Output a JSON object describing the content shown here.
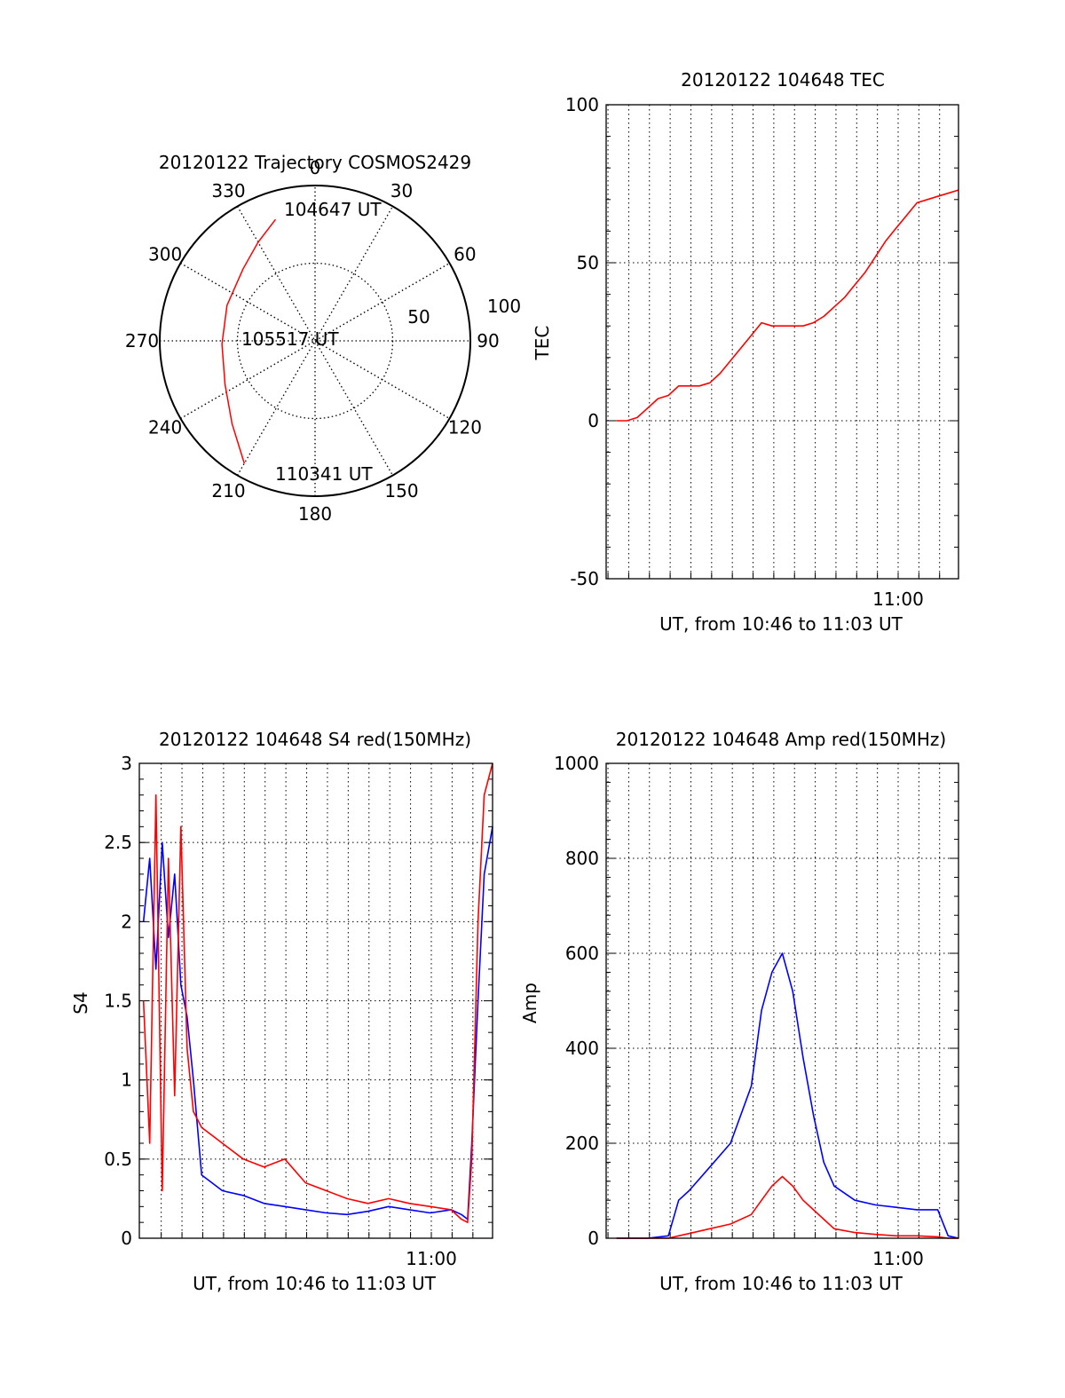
{
  "chart_data": [
    {
      "type": "polar",
      "title": "20120122 Trajectory COSMOS2429",
      "angle_labels": [
        "0",
        "30",
        "60",
        "90",
        "120",
        "150",
        "180",
        "210",
        "240",
        "270",
        "300",
        "330"
      ],
      "radius_labels": [
        "50",
        "100"
      ],
      "series": [
        {
          "color": "#ff0000",
          "points": [
            {
              "azimuth": 342,
              "elevation": 16
            },
            {
              "azimuth": 330,
              "elevation": 24
            },
            {
              "azimuth": 315,
              "elevation": 31
            },
            {
              "azimuth": 292,
              "elevation": 35
            },
            {
              "azimuth": 268,
              "elevation": 36
            },
            {
              "azimuth": 244,
              "elevation": 32
            },
            {
              "azimuth": 225,
              "elevation": 22
            },
            {
              "azimuth": 210,
              "elevation": 8
            }
          ]
        }
      ],
      "annotations": [
        "104647 UT",
        "105517 UT",
        "110341 UT"
      ]
    },
    {
      "type": "line",
      "title": "20120122 104648 TEC",
      "xlabel": "UT, from 10:46 to 11:03 UT",
      "ylabel": "TEC",
      "xlim": [
        0,
        17
      ],
      "ylim": [
        -50,
        100
      ],
      "yticks": [
        "-50",
        "0",
        "50",
        "100"
      ],
      "xtick_label": "11:00",
      "grid": true,
      "series": [
        {
          "color": "#ff0000",
          "x": [
            0.5,
            1.0,
            1.5,
            2.0,
            2.5,
            3.0,
            3.5,
            4.0,
            4.5,
            5.0,
            5.5,
            6.0,
            6.5,
            7.0,
            7.5,
            8.0,
            8.5,
            9.0,
            9.5,
            10.0,
            10.5,
            11.0,
            11.5,
            12.0,
            12.5,
            13.0,
            13.5,
            14.0,
            14.5,
            15.0,
            15.5,
            16.0,
            16.5,
            17.0
          ],
          "y": [
            0,
            0,
            1,
            4,
            7,
            8,
            11,
            11,
            11,
            12,
            15,
            19,
            23,
            27,
            31,
            30,
            30,
            30,
            30,
            31,
            33,
            36,
            39,
            43,
            47,
            52,
            57,
            61,
            65,
            69,
            70,
            71,
            72,
            73
          ]
        }
      ]
    },
    {
      "type": "line",
      "title": "20120122 104648 S4 red(150MHz)",
      "xlabel": "UT, from 10:46 to 11:03 UT",
      "ylabel": "S4",
      "xlim": [
        0,
        17
      ],
      "ylim": [
        0,
        3
      ],
      "yticks": [
        "0",
        "0.5",
        "1",
        "1.5",
        "2",
        "2.5",
        "3"
      ],
      "xtick_label": "11:00",
      "grid": true,
      "series": [
        {
          "color": "#0000ff",
          "x": [
            0.2,
            0.5,
            0.8,
            1.1,
            1.4,
            1.7,
            2.0,
            2.3,
            2.6,
            3.0,
            4.0,
            5.0,
            6.0,
            7.0,
            8.0,
            9.0,
            10.0,
            11.0,
            12.0,
            13.0,
            14.0,
            15.0,
            15.5,
            15.8,
            16.0,
            16.3,
            16.6,
            17.0
          ],
          "y": [
            2.0,
            2.4,
            1.7,
            2.5,
            1.9,
            2.3,
            1.6,
            1.4,
            1.0,
            0.4,
            0.3,
            0.27,
            0.22,
            0.2,
            0.18,
            0.16,
            0.15,
            0.17,
            0.2,
            0.18,
            0.16,
            0.18,
            0.15,
            0.12,
            0.6,
            1.5,
            2.3,
            2.6
          ]
        },
        {
          "color": "#ff0000",
          "x": [
            0.2,
            0.5,
            0.8,
            1.1,
            1.4,
            1.7,
            2.0,
            2.3,
            2.6,
            3.0,
            4.0,
            5.0,
            6.0,
            7.0,
            8.0,
            9.0,
            10.0,
            11.0,
            12.0,
            13.0,
            14.0,
            15.0,
            15.5,
            15.8,
            16.0,
            16.3,
            16.6,
            17.0
          ],
          "y": [
            1.5,
            0.6,
            2.8,
            0.3,
            2.4,
            0.9,
            2.6,
            1.2,
            0.8,
            0.7,
            0.6,
            0.5,
            0.45,
            0.5,
            0.35,
            0.3,
            0.25,
            0.22,
            0.25,
            0.22,
            0.2,
            0.18,
            0.12,
            0.1,
            0.5,
            2.0,
            2.8,
            3.0
          ]
        }
      ]
    },
    {
      "type": "line",
      "title": "20120122 104648 Amp red(150MHz)",
      "xlabel": "UT, from 10:46 to 11:03 UT",
      "ylabel": "Amp",
      "xlim": [
        0,
        17
      ],
      "ylim": [
        0,
        1000
      ],
      "yticks": [
        "0",
        "200",
        "400",
        "600",
        "800",
        "1000"
      ],
      "xtick_label": "11:00",
      "grid": true,
      "series": [
        {
          "color": "#0000ff",
          "x": [
            0.5,
            2.0,
            3.0,
            3.5,
            4.0,
            5.0,
            6.0,
            7.0,
            7.5,
            8.0,
            8.5,
            9.0,
            9.5,
            10.0,
            10.5,
            11.0,
            12.0,
            13.0,
            14.0,
            15.0,
            16.0,
            16.5,
            17.0
          ],
          "y": [
            0,
            0,
            5,
            80,
            100,
            150,
            200,
            320,
            480,
            560,
            600,
            520,
            380,
            260,
            160,
            110,
            80,
            70,
            65,
            60,
            60,
            5,
            0
          ]
        },
        {
          "color": "#ff0000",
          "x": [
            0.5,
            2.0,
            3.0,
            3.5,
            4.0,
            5.0,
            6.0,
            7.0,
            7.5,
            8.0,
            8.5,
            9.0,
            9.5,
            10.0,
            10.5,
            11.0,
            12.0,
            13.0,
            14.0,
            15.0,
            16.0,
            16.5,
            17.0
          ],
          "y": [
            0,
            0,
            0,
            5,
            10,
            20,
            30,
            50,
            80,
            110,
            130,
            110,
            80,
            60,
            40,
            20,
            12,
            8,
            5,
            5,
            3,
            0,
            0
          ]
        }
      ]
    }
  ]
}
